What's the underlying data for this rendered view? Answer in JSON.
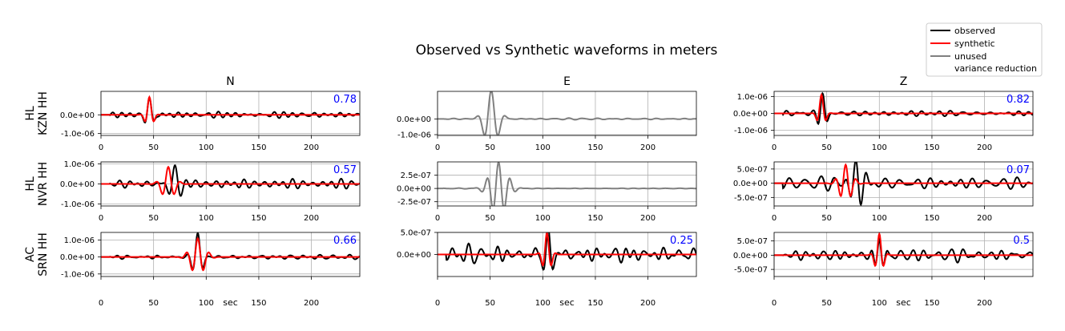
{
  "colors": {
    "observed": "#000000",
    "synthetic": "#ff0000",
    "unused": "#808080",
    "variance": "#0000ff",
    "grid": "#b0b0b0"
  },
  "chart_data": {
    "type": "line",
    "title": "Observed vs Synthetic waveforms in meters",
    "columns": [
      "N",
      "E",
      "Z"
    ],
    "xlabel": "sec",
    "xlim": [
      0,
      246
    ],
    "xticks": [
      0,
      50,
      100,
      150,
      200
    ],
    "legend": {
      "position": "top-right",
      "entries": [
        {
          "label": "observed",
          "style": "observed"
        },
        {
          "label": "synthetic",
          "style": "synthetic"
        },
        {
          "label": "unused",
          "style": "unused"
        },
        {
          "label": "variance reduction",
          "style": "text"
        }
      ]
    },
    "rows": [
      {
        "network": "HL",
        "station": "KZN HH",
        "panels": [
          {
            "component": "N",
            "used": true,
            "variance_reduction": "0.78",
            "ylim": [
              -1.1e-06,
              1.25e-06
            ],
            "yticks": [
              0,
              -1e-06
            ],
            "ytick_labels": [
              "0.0e+00",
              "-1.0e-06"
            ],
            "obs_packet": {
              "center": 46,
              "width": 5,
              "period": 10,
              "amp": 1e-06
            },
            "obs_noise": {
              "amp": 1.3e-07,
              "start": 8,
              "seed": 11
            },
            "syn_packet": {
              "center": 46,
              "width": 4.5,
              "period": 10,
              "amp": 9.5e-07
            }
          },
          {
            "component": "E",
            "used": false,
            "variance_reduction": "",
            "ylim": [
              -1.05e-06,
              1.75e-06
            ],
            "yticks": [
              0,
              -1e-06
            ],
            "ytick_labels": [
              "0.0e+00",
              "-1.0e-06"
            ],
            "obs_packet": {
              "center": 51,
              "width": 9,
              "period": 14,
              "amp": 1.8e-06
            },
            "obs_noise": {
              "amp": 3e-08,
              "start": 5,
              "seed": 3
            },
            "syn_packet": null
          },
          {
            "component": "Z",
            "used": true,
            "variance_reduction": "0.82",
            "ylim": [
              -1.3e-06,
              1.3e-06
            ],
            "yticks": [
              1e-06,
              0,
              -1e-06
            ],
            "ytick_labels": [
              "1.0e-06",
              "0.0e+00",
              "-1.0e-06"
            ],
            "obs_packet": {
              "center": 46,
              "width": 5,
              "period": 10,
              "amp": 1.15e-06
            },
            "obs_noise": {
              "amp": 1.5e-07,
              "start": 8,
              "seed": 19
            },
            "syn_packet": {
              "center": 45,
              "width": 4.5,
              "period": 10,
              "amp": 1.1e-06
            }
          }
        ]
      },
      {
        "network": "HL",
        "station": "NVR HH",
        "panels": [
          {
            "component": "N",
            "used": true,
            "variance_reduction": "0.57",
            "ylim": [
              -1.1e-06,
              1.1e-06
            ],
            "yticks": [
              1e-06,
              0,
              -1e-06
            ],
            "ytick_labels": [
              "1.0e-06",
              "0.0e+00",
              "-1.0e-06"
            ],
            "obs_packet": {
              "center": 70,
              "width": 8,
              "period": 12,
              "amp": 1.05e-06
            },
            "obs_noise": {
              "amp": 1.5e-07,
              "start": 8,
              "seed": 23
            },
            "syn_packet": {
              "center": 64,
              "width": 8,
              "period": 12,
              "amp": 8.5e-07
            }
          },
          {
            "component": "E",
            "used": false,
            "variance_reduction": "",
            "ylim": [
              -3.3e-07,
              5e-07
            ],
            "yticks": [
              2.5e-07,
              0,
              -2.5e-07
            ],
            "ytick_labels": [
              "2.5e-07",
              "0.0e+00",
              "-2.5e-07"
            ],
            "obs_packet": {
              "center": 58,
              "width": 11,
              "period": 11,
              "amp": 5e-07
            },
            "obs_noise": {
              "amp": 5e-09,
              "start": 5,
              "seed": 7
            },
            "syn_packet": null
          },
          {
            "component": "Z",
            "used": true,
            "variance_reduction": "0.07",
            "ylim": [
              -8e-07,
              7.5e-07
            ],
            "yticks": [
              5e-07,
              0,
              -5e-07
            ],
            "ytick_labels": [
              "5.0e-07",
              "0.0e+00",
              "-5.0e-07"
            ],
            "obs_packet": {
              "center": 78,
              "width": 9,
              "period": 10,
              "amp": 8e-07
            },
            "obs_noise": {
              "amp": 1.8e-07,
              "start": 8,
              "seed": 31
            },
            "syn_packet": {
              "center": 68,
              "width": 8,
              "period": 10,
              "amp": 6.5e-07
            }
          }
        ]
      },
      {
        "network": "AC",
        "station": "SRN HH",
        "panels": [
          {
            "component": "N",
            "used": true,
            "variance_reduction": "0.66",
            "ylim": [
              -1.15e-06,
              1.45e-06
            ],
            "yticks": [
              1e-06,
              0,
              -1e-06
            ],
            "ytick_labels": [
              "1.0e-06",
              "0.0e+00",
              "-1.0e-06"
            ],
            "obs_packet": {
              "center": 92,
              "width": 6,
              "period": 11,
              "amp": 1.45e-06
            },
            "obs_noise": {
              "amp": 1.2e-07,
              "start": 8,
              "seed": 37
            },
            "syn_packet": {
              "center": 92,
              "width": 9,
              "period": 11,
              "amp": 1.1e-06
            }
          },
          {
            "component": "E",
            "used": true,
            "variance_reduction": "0.25",
            "ylim": [
              -5e-07,
              5e-07
            ],
            "yticks": [
              5e-07,
              0
            ],
            "ytick_labels": [
              "5.0e-07",
              "0.0e+00"
            ],
            "obs_packet": {
              "center": 105,
              "width": 6,
              "period": 9,
              "amp": 5e-07
            },
            "obs_noise": {
              "amp": 1.4e-07,
              "start": 8,
              "seed": 41
            },
            "syn_packet": {
              "center": 104,
              "width": 5,
              "period": 9,
              "amp": 5e-07
            }
          },
          {
            "component": "Z",
            "used": true,
            "variance_reduction": "0.5",
            "ylim": [
              -7.5e-07,
              8e-07
            ],
            "yticks": [
              5e-07,
              0,
              -5e-07
            ],
            "ytick_labels": [
              "5.0e-07",
              "0.0e+00",
              "-5.0e-07"
            ],
            "obs_packet": {
              "center": 100,
              "width": 6,
              "period": 9,
              "amp": 8e-07
            },
            "obs_noise": {
              "amp": 1.6e-07,
              "start": 8,
              "seed": 43
            },
            "syn_packet": {
              "center": 100,
              "width": 5,
              "period": 9,
              "amp": 7.5e-07
            }
          }
        ]
      }
    ]
  }
}
